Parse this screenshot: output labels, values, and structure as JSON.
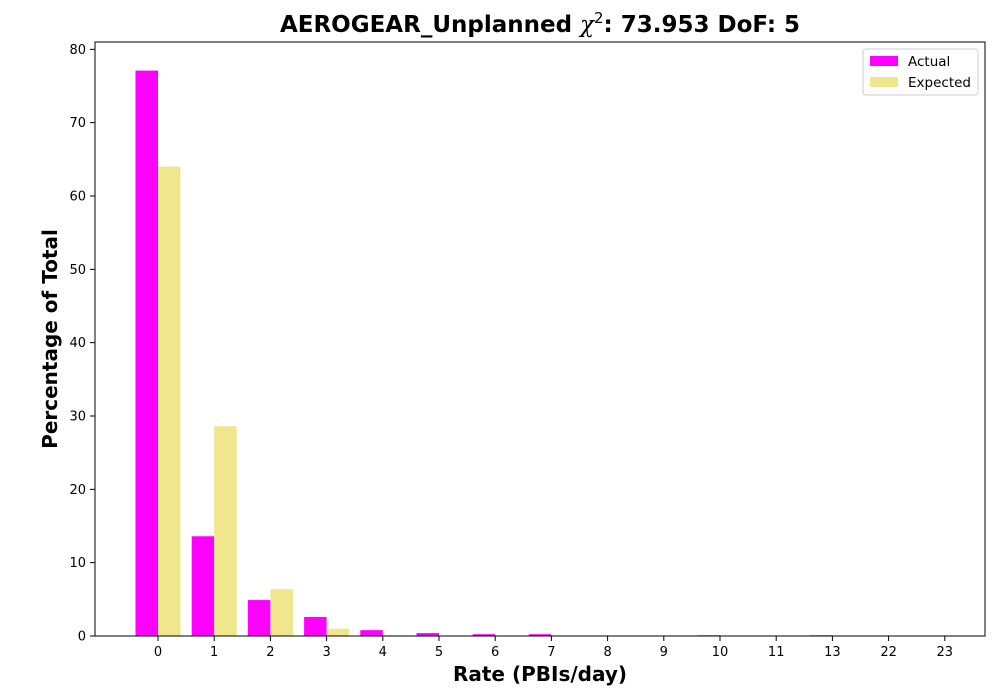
{
  "chart_data": {
    "type": "bar",
    "title_prefix": "AEROGEAR_Unplanned",
    "title_chi": "χ",
    "title_chi_sup": "2",
    "title_suffix": ": 73.953 DoF: 5",
    "xlabel": "Rate (PBIs/day)",
    "ylabel": "Percentage of Total",
    "categories": [
      "0",
      "1",
      "2",
      "3",
      "4",
      "5",
      "6",
      "7",
      "8",
      "9",
      "10",
      "11",
      "13",
      "22",
      "23"
    ],
    "series": [
      {
        "name": "Actual",
        "color": "#ff00ff",
        "values": [
          77.1,
          13.6,
          4.9,
          2.6,
          0.8,
          0.4,
          0.25,
          0.25,
          0,
          0,
          0.1,
          0,
          0.1,
          0,
          0
        ]
      },
      {
        "name": "Expected",
        "color": "#f0e68c",
        "values": [
          64.0,
          28.6,
          6.4,
          1.0,
          0.1,
          0.01,
          0,
          0,
          0,
          0,
          0,
          0,
          0,
          0,
          0
        ]
      }
    ],
    "ylim": [
      0,
      81
    ],
    "yticks": [
      "0",
      "10",
      "20",
      "30",
      "40",
      "50",
      "60",
      "70",
      "80"
    ],
    "legend_position": "top-right",
    "grid": false
  }
}
